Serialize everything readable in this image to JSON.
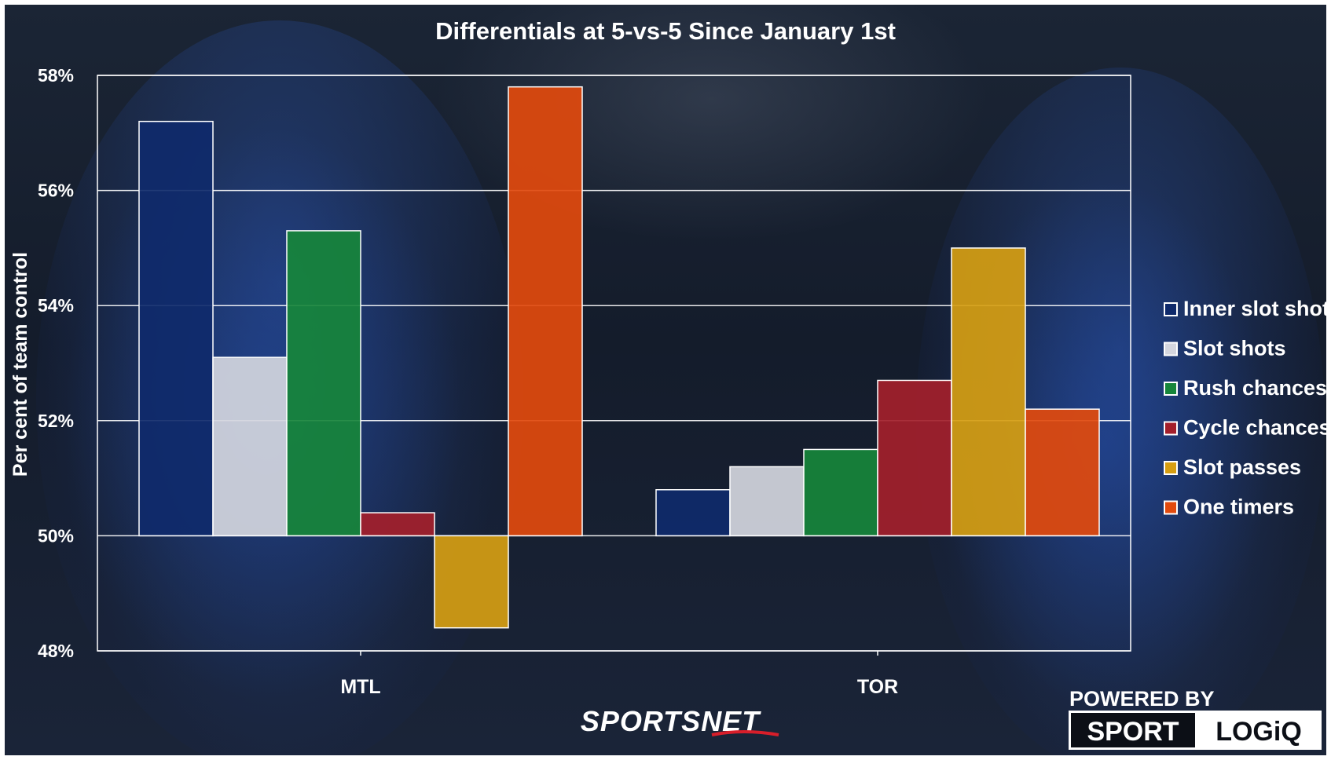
{
  "chart_data": {
    "type": "bar",
    "title": "Differentials at 5-vs-5 Since January 1st",
    "ylabel": "Per cent of team control",
    "xlabel": "",
    "categories": [
      "MTL",
      "TOR"
    ],
    "ylim": [
      48,
      58
    ],
    "baseline": 50,
    "yticks": [
      48,
      50,
      52,
      54,
      56,
      58
    ],
    "ytick_labels": [
      "48%",
      "50%",
      "52%",
      "54%",
      "56%",
      "58%"
    ],
    "grid": true,
    "legend_position": "right",
    "series": [
      {
        "name": "Inner slot shots",
        "color": "#0f2a6b",
        "values": [
          57.2,
          50.8
        ]
      },
      {
        "name": "Slot shots",
        "color": "#d4d6de",
        "values": [
          53.1,
          51.2
        ]
      },
      {
        "name": "Rush chances",
        "color": "#17863b",
        "values": [
          55.3,
          51.5
        ]
      },
      {
        "name": "Cycle chances",
        "color": "#a31f2b",
        "values": [
          50.4,
          52.7
        ]
      },
      {
        "name": "Slot passes",
        "color": "#d69e12",
        "values": [
          48.4,
          55.0
        ]
      },
      {
        "name": "One timers",
        "color": "#e24a0d",
        "values": [
          57.8,
          52.2
        ]
      }
    ]
  },
  "branding": {
    "network": "SPORTSNET",
    "powered_by": "POWERED BY",
    "partner_left": "SPORT",
    "partner_right": "LOGiQ"
  }
}
